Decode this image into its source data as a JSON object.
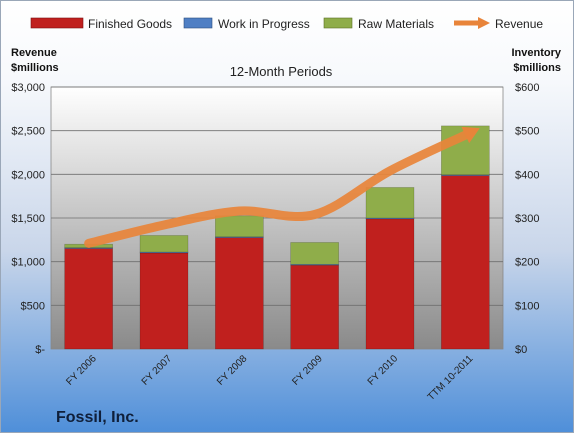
{
  "chart_data": {
    "type": "bar",
    "title": "12-Month Periods",
    "company": "Fossil, Inc.",
    "categories": [
      "FY 2006",
      "FY 2007",
      "FY 2008",
      "FY 2009",
      "FY 2010",
      "TTM 10-2011"
    ],
    "series": [
      {
        "name": "Finished Goods",
        "axis": "inventory",
        "stack": true,
        "color": "#c0201e",
        "values": [
          230,
          220,
          255,
          192,
          298,
          397
        ]
      },
      {
        "name": "Work in Progress",
        "axis": "inventory",
        "stack": true,
        "color": "#4f7fc4",
        "values": [
          2,
          2,
          2,
          2,
          2,
          2
        ]
      },
      {
        "name": "Raw Materials",
        "axis": "inventory",
        "stack": true,
        "color": "#8fad4a",
        "values": [
          8,
          38,
          48,
          50,
          70,
          112
        ]
      },
      {
        "name": "Revenue",
        "axis": "revenue",
        "type": "line",
        "color": "#e8843a",
        "values": [
          1210,
          1420,
          1580,
          1540,
          2040,
          2450
        ]
      }
    ],
    "left_axis": {
      "label_line1": "Revenue",
      "label_line2": "$millions",
      "ylim": [
        0,
        3000
      ],
      "ticks": [
        "$-",
        "$500",
        "$1,000",
        "$1,500",
        "$2,000",
        "$2,500",
        "$3,000"
      ]
    },
    "right_axis": {
      "label_line1": "Inventory",
      "label_line2": "$millions",
      "ylim": [
        0,
        600
      ],
      "ticks": [
        "$0",
        "$100",
        "$200",
        "$300",
        "$400",
        "$500",
        "$600"
      ]
    },
    "grid": true,
    "legend_position": "top"
  }
}
